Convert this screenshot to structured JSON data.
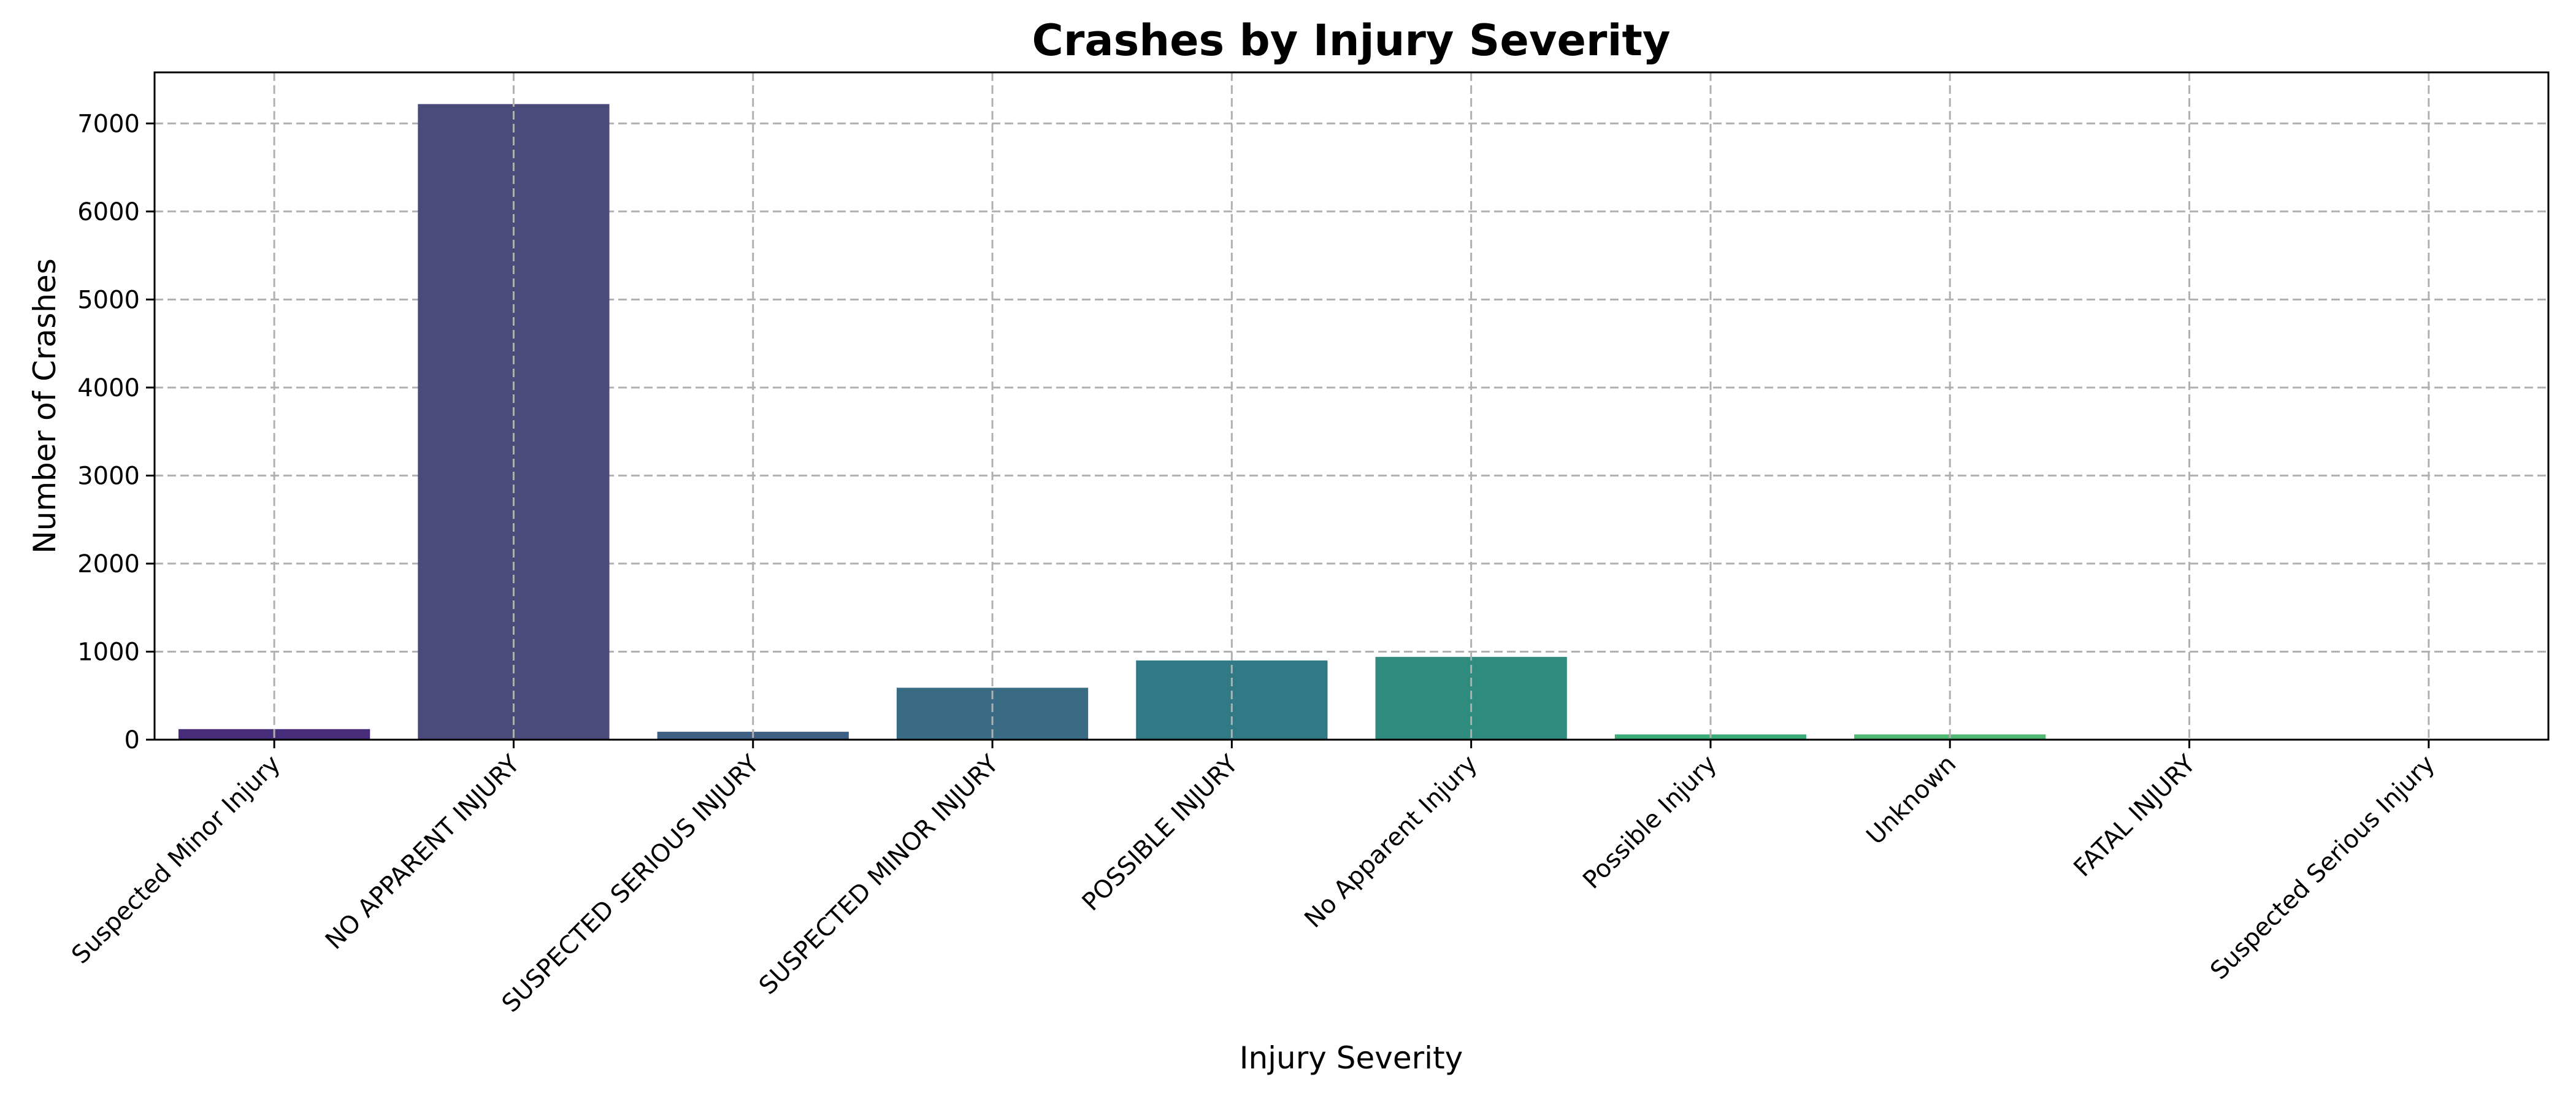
{
  "chart_data": {
    "type": "bar",
    "title": "Crashes by Injury Severity",
    "xlabel": "Injury Severity",
    "ylabel": "Number of Crashes",
    "categories": [
      "Suspected Minor Injury",
      "NO APPARENT INJURY",
      "SUSPECTED SERIOUS INJURY",
      "SUSPECTED MINOR INJURY",
      "POSSIBLE INJURY",
      "No Apparent Injury",
      "Possible Injury",
      "Unknown",
      "FATAL INJURY",
      "Suspected Serious Injury"
    ],
    "values": [
      120,
      7220,
      90,
      590,
      900,
      940,
      60,
      60,
      10,
      5
    ],
    "colors": [
      "#472c7a",
      "#4a4a7b",
      "#3e5f84",
      "#3a6b84",
      "#317985",
      "#2f8b7d",
      "#3bab78",
      "#50b872",
      "#63c565",
      "#79d151"
    ],
    "yticks": [
      0,
      1000,
      2000,
      3000,
      4000,
      5000,
      6000,
      7000
    ],
    "ylim": [
      0,
      7580
    ],
    "grid": true
  }
}
